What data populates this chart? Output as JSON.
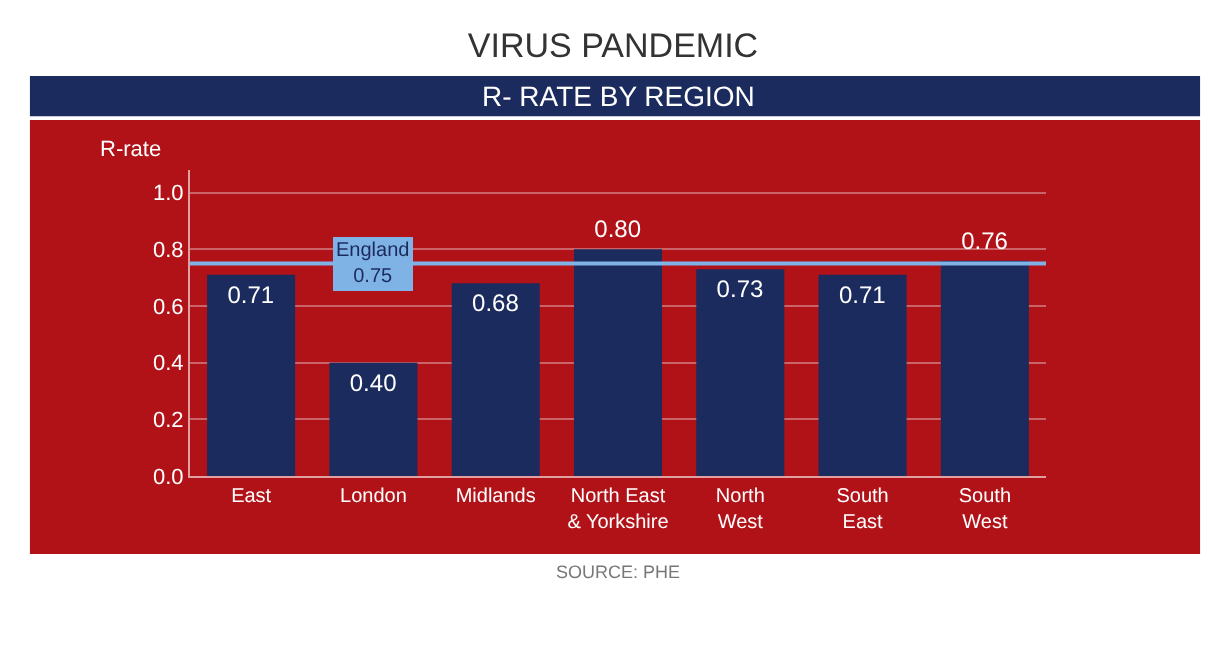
{
  "chart_data": {
    "type": "bar",
    "title": "VIRUS PANDEMIC",
    "subtitle": "R- RATE BY REGION",
    "ylabel": "R-rate",
    "categories": [
      "East",
      "London",
      "Midlands",
      "North East\n& Yorkshire",
      "North\nWest",
      "South\nEast",
      "South\nWest"
    ],
    "values": [
      0.71,
      0.4,
      0.68,
      0.8,
      0.73,
      0.71,
      0.76
    ],
    "color": "#1c2b5e",
    "value_labels": [
      "0.71",
      "0.40",
      "0.68",
      "0.80",
      "0.73",
      "0.71",
      "0.76"
    ],
    "ylim": [
      0,
      1.08
    ],
    "yticks": [
      {
        "value": 0,
        "label": "0.0"
      },
      {
        "value": 0.2,
        "label": "0.2"
      },
      {
        "value": 0.4,
        "label": "0.4"
      },
      {
        "value": 0.6,
        "label": "0.6"
      },
      {
        "value": 0.8,
        "label": "0.8"
      },
      {
        "value": 1.0,
        "label": "1.0"
      }
    ],
    "grid": "y",
    "ref_lines": [
      {
        "axis": "y",
        "value": 0.75,
        "label": "England\n0.75",
        "color": "#7fb2e5"
      }
    ],
    "annotations": [
      "SOURCE: PHE"
    ]
  }
}
